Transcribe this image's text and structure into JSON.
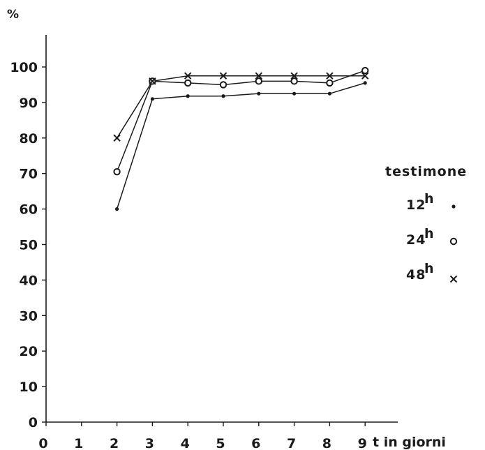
{
  "chart_data": {
    "type": "line",
    "ylabel": "%",
    "xlabel": "t  in giorni",
    "xlim": [
      0,
      9
    ],
    "ylim": [
      0,
      100
    ],
    "x_ticks": [
      "0",
      "1",
      "2",
      "3",
      "4",
      "5",
      "6",
      "7",
      "8",
      "9"
    ],
    "y_ticks": [
      "0",
      "10",
      "20",
      "30",
      "40",
      "50",
      "60",
      "70",
      "80",
      "90",
      "100"
    ],
    "legend_title": "testimone",
    "legend_placement": "right",
    "grid": false,
    "series": [
      {
        "name": "12h",
        "marker": "dot",
        "x": [
          2,
          3,
          4,
          5,
          6,
          7,
          8,
          9
        ],
        "y": [
          60,
          91,
          91.8,
          91.8,
          92.5,
          92.5,
          92.5,
          95.5
        ]
      },
      {
        "name": "24h",
        "marker": "circle",
        "x": [
          2,
          3,
          4,
          5,
          6,
          7,
          8,
          9
        ],
        "y": [
          70.5,
          96,
          95.5,
          95,
          96,
          96,
          95.5,
          99
        ]
      },
      {
        "name": "48h",
        "marker": "cross",
        "x": [
          2,
          3,
          4,
          5,
          6,
          7,
          8,
          9
        ],
        "y": [
          80,
          96,
          97.5,
          97.5,
          97.5,
          97.5,
          97.5,
          97.5
        ]
      }
    ]
  }
}
